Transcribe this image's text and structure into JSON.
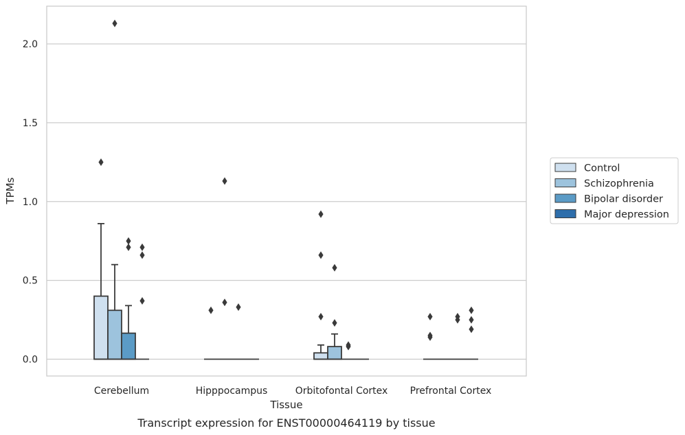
{
  "chart_data": {
    "type": "box",
    "caption": "Transcript expression for ENST00000464119 by tissue",
    "xlabel": "Tissue",
    "ylabel": "TPMs",
    "ylim": [
      -0.1,
      2.25
    ],
    "yticks": [
      0.0,
      0.5,
      1.0,
      1.5,
      2.0
    ],
    "ytick_labels": [
      "0.0",
      "0.5",
      "1.0",
      "1.5",
      "2.0"
    ],
    "grid": "horizontal",
    "legend_position": "right",
    "categories": [
      "Cerebellum",
      "Hipppocampus",
      "Orbitofontal Cortex",
      "Prefrontal Cortex"
    ],
    "series": [
      {
        "name": "Control",
        "color": "#cfe0ef",
        "boxes": [
          {
            "q1": 0.0,
            "median": 0.0,
            "q3": 0.4,
            "whisker_low": 0.0,
            "whisker_high": 0.86,
            "outliers": [
              1.25
            ]
          },
          {
            "q1": 0.0,
            "median": 0.0,
            "q3": 0.0,
            "whisker_low": 0.0,
            "whisker_high": 0.0,
            "outliers": [
              0.31
            ]
          },
          {
            "q1": 0.0,
            "median": 0.0,
            "q3": 0.04,
            "whisker_low": 0.0,
            "whisker_high": 0.09,
            "outliers": [
              0.27,
              0.66,
              0.92
            ]
          },
          {
            "q1": 0.0,
            "median": 0.0,
            "q3": 0.0,
            "whisker_low": 0.0,
            "whisker_high": 0.0,
            "outliers": [
              0.14,
              0.15,
              0.27
            ]
          }
        ]
      },
      {
        "name": "Schizophrenia",
        "color": "#9dc3dd",
        "boxes": [
          {
            "q1": 0.0,
            "median": 0.0,
            "q3": 0.31,
            "whisker_low": 0.0,
            "whisker_high": 0.6,
            "outliers": [
              2.13
            ]
          },
          {
            "q1": 0.0,
            "median": 0.0,
            "q3": 0.0,
            "whisker_low": 0.0,
            "whisker_high": 0.0,
            "outliers": [
              0.36,
              1.13
            ]
          },
          {
            "q1": 0.0,
            "median": 0.0,
            "q3": 0.08,
            "whisker_low": 0.0,
            "whisker_high": 0.16,
            "outliers": [
              0.23,
              0.58
            ]
          },
          {
            "q1": 0.0,
            "median": 0.0,
            "q3": 0.0,
            "whisker_low": 0.0,
            "whisker_high": 0.0,
            "outliers": []
          }
        ]
      },
      {
        "name": "Bipolar disorder",
        "color": "#5b9bc6",
        "boxes": [
          {
            "q1": 0.0,
            "median": 0.0,
            "q3": 0.165,
            "whisker_low": 0.0,
            "whisker_high": 0.34,
            "outliers": [
              0.71,
              0.75
            ]
          },
          {
            "q1": 0.0,
            "median": 0.0,
            "q3": 0.0,
            "whisker_low": 0.0,
            "whisker_high": 0.0,
            "outliers": [
              0.33
            ]
          },
          {
            "q1": 0.0,
            "median": 0.0,
            "q3": 0.0,
            "whisker_low": 0.0,
            "whisker_high": 0.0,
            "outliers": [
              0.08,
              0.09
            ]
          },
          {
            "q1": 0.0,
            "median": 0.0,
            "q3": 0.0,
            "whisker_low": 0.0,
            "whisker_high": 0.0,
            "outliers": [
              0.25,
              0.27
            ]
          }
        ]
      },
      {
        "name": "Major depression",
        "color": "#2e6eab",
        "boxes": [
          {
            "q1": 0.0,
            "median": 0.0,
            "q3": 0.0,
            "whisker_low": 0.0,
            "whisker_high": 0.0,
            "outliers": [
              0.37,
              0.66,
              0.71
            ]
          },
          {
            "q1": 0.0,
            "median": 0.0,
            "q3": 0.0,
            "whisker_low": 0.0,
            "whisker_high": 0.0,
            "outliers": []
          },
          {
            "q1": 0.0,
            "median": 0.0,
            "q3": 0.0,
            "whisker_low": 0.0,
            "whisker_high": 0.0,
            "outliers": []
          },
          {
            "q1": 0.0,
            "median": 0.0,
            "q3": 0.0,
            "whisker_low": 0.0,
            "whisker_high": 0.0,
            "outliers": [
              0.19,
              0.25,
              0.31
            ]
          }
        ]
      }
    ]
  }
}
